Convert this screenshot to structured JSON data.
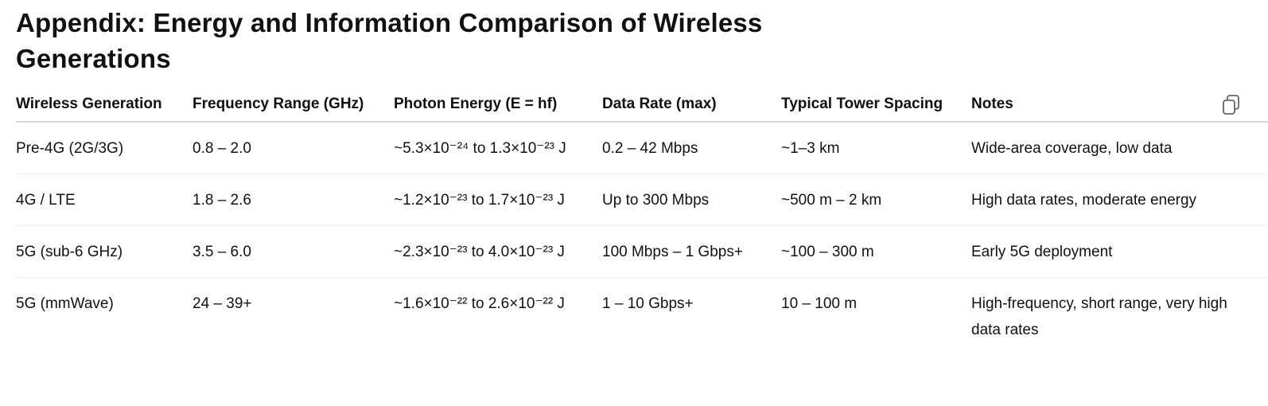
{
  "header": {
    "title": "Appendix: Energy and Information Comparison of Wireless Generations"
  },
  "table": {
    "columns": [
      "Wireless Generation",
      "Frequency Range (GHz)",
      "Photon Energy (E = hf)",
      "Data Rate (max)",
      "Typical Tower Spacing",
      "Notes"
    ],
    "rows": [
      [
        "Pre-4G (2G/3G)",
        "0.8 – 2.0",
        "~5.3×10⁻²⁴ to 1.3×10⁻²³ J",
        "0.2 – 42 Mbps",
        "~1–3 km",
        "Wide-area coverage, low data"
      ],
      [
        "4G / LTE",
        "1.8 – 2.6",
        "~1.2×10⁻²³ to 1.7×10⁻²³ J",
        "Up to 300 Mbps",
        "~500 m – 2 km",
        "High data rates, moderate energy"
      ],
      [
        "5G (sub-6 GHz)",
        "3.5 – 6.0",
        "~2.3×10⁻²³ to 4.0×10⁻²³ J",
        "100 Mbps – 1 Gbps+",
        "~100 – 300 m",
        "Early 5G deployment"
      ],
      [
        "5G (mmWave)",
        "24 – 39+",
        "~1.6×10⁻²² to 2.6×10⁻²² J",
        "1 – 10 Gbps+",
        "10 – 100 m",
        "High-frequency, short range, very high data rates"
      ]
    ]
  }
}
